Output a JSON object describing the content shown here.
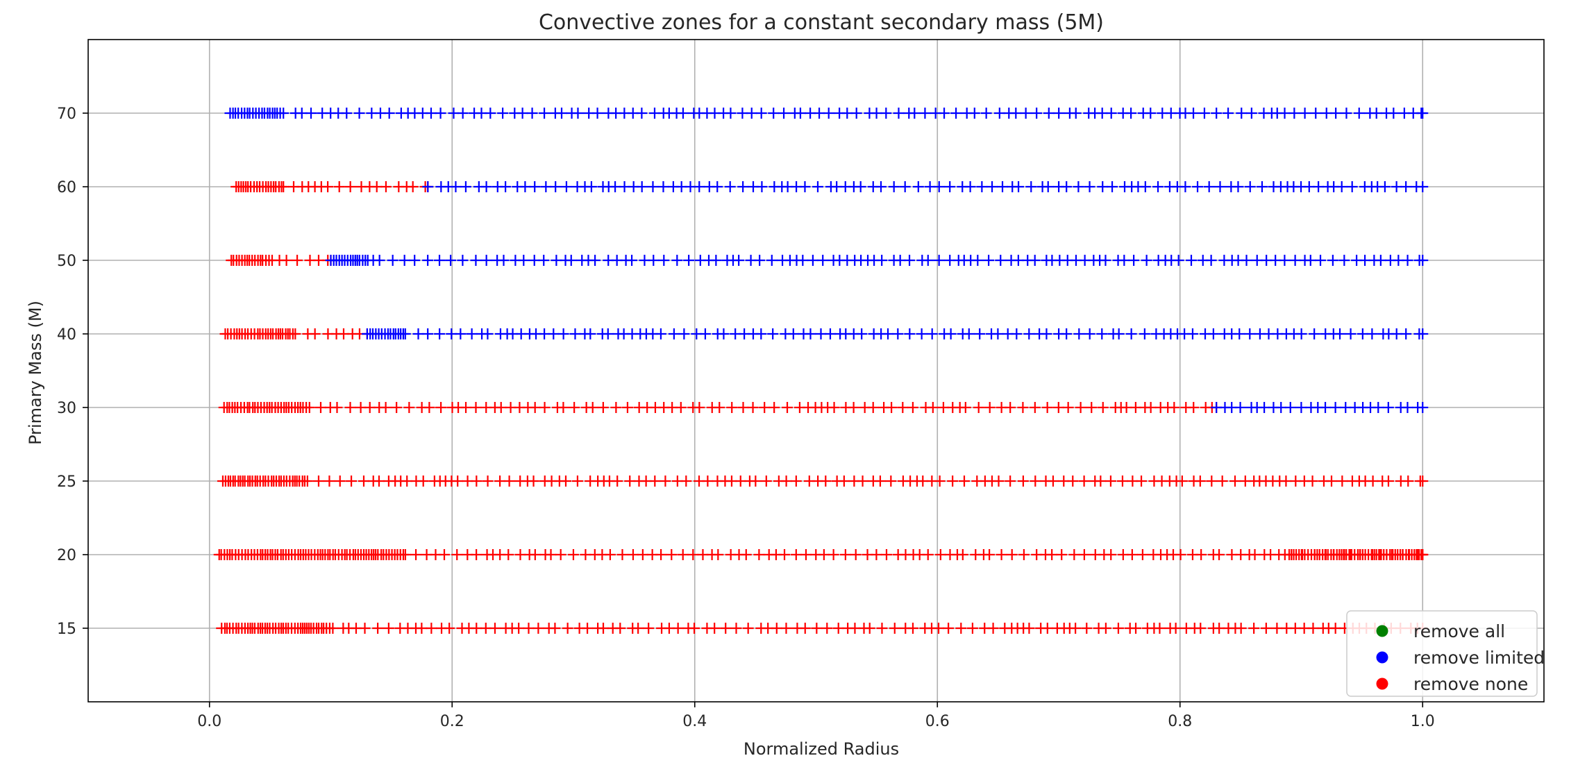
{
  "chart_data": {
    "type": "scatter",
    "title": "Convective zones for a constant secondary mass (5M)",
    "xlabel": "Normalized Radius",
    "ylabel": "Primary Mass (M)",
    "xlim": [
      -0.1,
      1.1
    ],
    "x_ticks": [
      "0.0",
      "0.2",
      "0.4",
      "0.6",
      "0.8",
      "1.0"
    ],
    "y_ticks": [
      "15",
      "20",
      "25",
      "30",
      "40",
      "50",
      "60",
      "70"
    ],
    "grid": true,
    "legend_position": "lower-right",
    "legend": [
      {
        "label": "remove all",
        "color": "#008000"
      },
      {
        "label": "remove limited",
        "color": "#0000ff"
      },
      {
        "label": "remove none",
        "color": "#ff0000"
      }
    ],
    "marker": "+",
    "rows": [
      {
        "mass": "70",
        "segments": [
          {
            "color": "#0000ff",
            "from": 0.017,
            "to": 1.0,
            "dense_until": 0.06
          }
        ]
      },
      {
        "mass": "60",
        "segments": [
          {
            "color": "#ff0000",
            "from": 0.022,
            "to": 0.18,
            "dense_until": 0.06
          },
          {
            "color": "#0000ff",
            "from": 0.18,
            "to": 1.0,
            "dense_until": 0.18
          }
        ]
      },
      {
        "mass": "50",
        "segments": [
          {
            "color": "#ff0000",
            "from": 0.018,
            "to": 0.1,
            "dense_until": 0.05
          },
          {
            "color": "#0000ff",
            "from": 0.1,
            "to": 1.0,
            "dense_until": 0.13
          }
        ]
      },
      {
        "mass": "40",
        "segments": [
          {
            "color": "#ff0000",
            "from": 0.013,
            "to": 0.13,
            "dense_until": 0.07
          },
          {
            "color": "#0000ff",
            "from": 0.13,
            "to": 1.0,
            "dense_until": 0.16
          }
        ]
      },
      {
        "mass": "30",
        "segments": [
          {
            "color": "#ff0000",
            "from": 0.012,
            "to": 0.83,
            "dense_until": 0.08
          },
          {
            "color": "#0000ff",
            "from": 0.83,
            "to": 1.0,
            "dense_until": 0.83
          }
        ]
      },
      {
        "mass": "25",
        "segments": [
          {
            "color": "#ff0000",
            "from": 0.011,
            "to": 1.0,
            "dense_until": 0.08
          }
        ]
      },
      {
        "mass": "20",
        "segments": [
          {
            "color": "#ff0000",
            "from": 0.008,
            "to": 1.0,
            "dense_until": 0.16
          },
          {
            "color": "#ff0000",
            "from": 0.89,
            "to": 1.0,
            "dense_until": 1.0
          }
        ]
      },
      {
        "mass": "15",
        "segments": [
          {
            "color": "#ff0000",
            "from": 0.01,
            "to": 1.0,
            "dense_until": 0.1
          }
        ]
      }
    ]
  }
}
